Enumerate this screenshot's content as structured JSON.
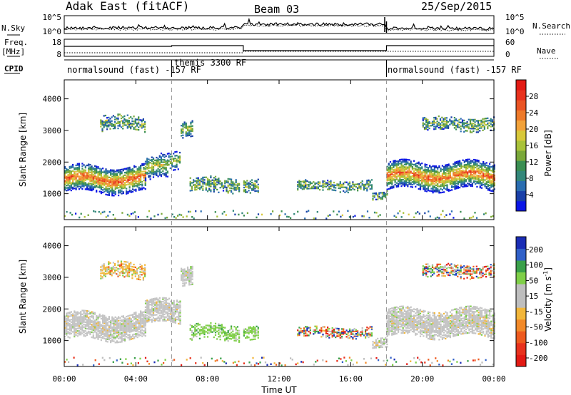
{
  "header": {
    "station": "Adak East (fitACF)",
    "beam": "Beam 03",
    "date": "25/Sep/2015"
  },
  "noise_panel": {
    "left_label": "N.Sky",
    "right_label": "N.Search",
    "left_ticks": [
      "10^5",
      "10^0"
    ],
    "right_ticks": [
      "10^5",
      "10^0"
    ]
  },
  "freq_panel": {
    "left_label_1": "Freq.",
    "left_label_2": "[MHz]",
    "left_ticks": [
      "18",
      "8"
    ],
    "right_label": "Nave",
    "right_ticks": [
      "60",
      "0"
    ]
  },
  "cpid": {
    "label": "CPID",
    "segments": [
      {
        "start": 0,
        "end": 6,
        "name": "normalsound (fast) -157 RF"
      },
      {
        "start": 6,
        "end": 18,
        "name": "themis 3300 RF"
      },
      {
        "start": 18,
        "end": 24,
        "name": "normalsound (fast) -157 RF"
      }
    ]
  },
  "chart_data": [
    {
      "type": "heatmap",
      "ylabel": "Slant Range [km]",
      "xlabel": "",
      "ylim": [
        180,
        4600
      ],
      "yticks": [
        "1000",
        "2000",
        "3000",
        "4000"
      ],
      "colorbar": {
        "label": "Power [dB]",
        "ticks": [
          "4",
          "8",
          "12",
          "16",
          "20",
          "24",
          "28"
        ],
        "colors": [
          "#0b16e6",
          "#1a40a8",
          "#2a6db0",
          "#33877a",
          "#3a8e52",
          "#7aa83a",
          "#a9c23a",
          "#d8c83a",
          "#f2a23a",
          "#ee7a2a",
          "#ea5424",
          "#e8321d",
          "#e31a14"
        ]
      },
      "regions": [
        {
          "t0": 0,
          "t1": 4.5,
          "center_km": 1450,
          "half_width_km": 420,
          "intensity": "high"
        },
        {
          "t0": 4.5,
          "t1": 5.8,
          "center_km": 1800,
          "half_width_km": 400,
          "intensity": "medium"
        },
        {
          "t0": 5.8,
          "t1": 6.5,
          "center_km": 2000,
          "half_width_km": 300,
          "intensity": "medium"
        },
        {
          "t0": 6.5,
          "t1": 7.2,
          "center_km": 3000,
          "half_width_km": 300,
          "intensity": "medium"
        },
        {
          "t0": 7.0,
          "t1": 9.8,
          "center_km": 1250,
          "half_width_km": 250,
          "intensity": "low"
        },
        {
          "t0": 10.0,
          "t1": 10.8,
          "center_km": 1200,
          "half_width_km": 220,
          "intensity": "low"
        },
        {
          "t0": 13.0,
          "t1": 17.2,
          "center_km": 1250,
          "half_width_km": 180,
          "intensity": "low"
        },
        {
          "t0": 17.2,
          "t1": 18.0,
          "center_km": 900,
          "half_width_km": 150,
          "intensity": "low"
        },
        {
          "t0": 18.0,
          "t1": 24.0,
          "center_km": 1550,
          "half_width_km": 430,
          "intensity": "high"
        },
        {
          "t0": 2.0,
          "t1": 4.5,
          "center_km": 3200,
          "half_width_km": 250,
          "intensity": "low"
        },
        {
          "t0": 20.0,
          "t1": 24.0,
          "center_km": 3200,
          "half_width_km": 220,
          "intensity": "low"
        }
      ]
    },
    {
      "type": "heatmap",
      "ylabel": "Slant Range [km]",
      "xlabel": "Time UT",
      "ylim": [
        180,
        4600
      ],
      "yticks": [
        "1000",
        "2000",
        "3000",
        "4000"
      ],
      "xticks": [
        "00:00",
        "04:00",
        "08:00",
        "12:00",
        "16:00",
        "20:00",
        "00:00"
      ],
      "xlim": [
        0,
        24
      ],
      "colorbar": {
        "label": "Velocity [m s",
        "label_sup": "-1",
        "label_end": "]",
        "ticks": [
          "200",
          "100",
          "50",
          "15",
          "-15",
          "-50",
          "-100",
          "-200"
        ],
        "colors": [
          "#1a2db5",
          "#3060c8",
          "#3aa04a",
          "#7fcf48",
          "#bebebe",
          "#bebebe",
          "#f2b63a",
          "#f28a2a",
          "#ee5a1e",
          "#e8321d",
          "#e31a14"
        ]
      },
      "regions": [
        {
          "t0": 0,
          "t1": 4.5,
          "center_km": 1450,
          "half_width_km": 420,
          "class": "ground"
        },
        {
          "t0": 4.5,
          "t1": 6.5,
          "center_km": 1900,
          "half_width_km": 380,
          "class": "ground"
        },
        {
          "t0": 6.5,
          "t1": 7.2,
          "center_km": 3000,
          "half_width_km": 300,
          "class": "ground"
        },
        {
          "t0": 7.0,
          "t1": 9.8,
          "center_km": 1250,
          "half_width_km": 250,
          "class": "positive"
        },
        {
          "t0": 10.0,
          "t1": 10.8,
          "center_km": 1200,
          "half_width_km": 220,
          "class": "positive"
        },
        {
          "t0": 13.0,
          "t1": 17.2,
          "center_km": 1250,
          "half_width_km": 180,
          "class": "mixed"
        },
        {
          "t0": 17.2,
          "t1": 18.0,
          "center_km": 900,
          "half_width_km": 150,
          "class": "ground"
        },
        {
          "t0": 18.0,
          "t1": 24.0,
          "center_km": 1550,
          "half_width_km": 430,
          "class": "ground"
        },
        {
          "t0": 2.0,
          "t1": 4.5,
          "center_km": 3200,
          "half_width_km": 250,
          "class": "negative"
        },
        {
          "t0": 20.0,
          "t1": 24.0,
          "center_km": 3200,
          "half_width_km": 220,
          "class": "mixed"
        }
      ]
    }
  ]
}
